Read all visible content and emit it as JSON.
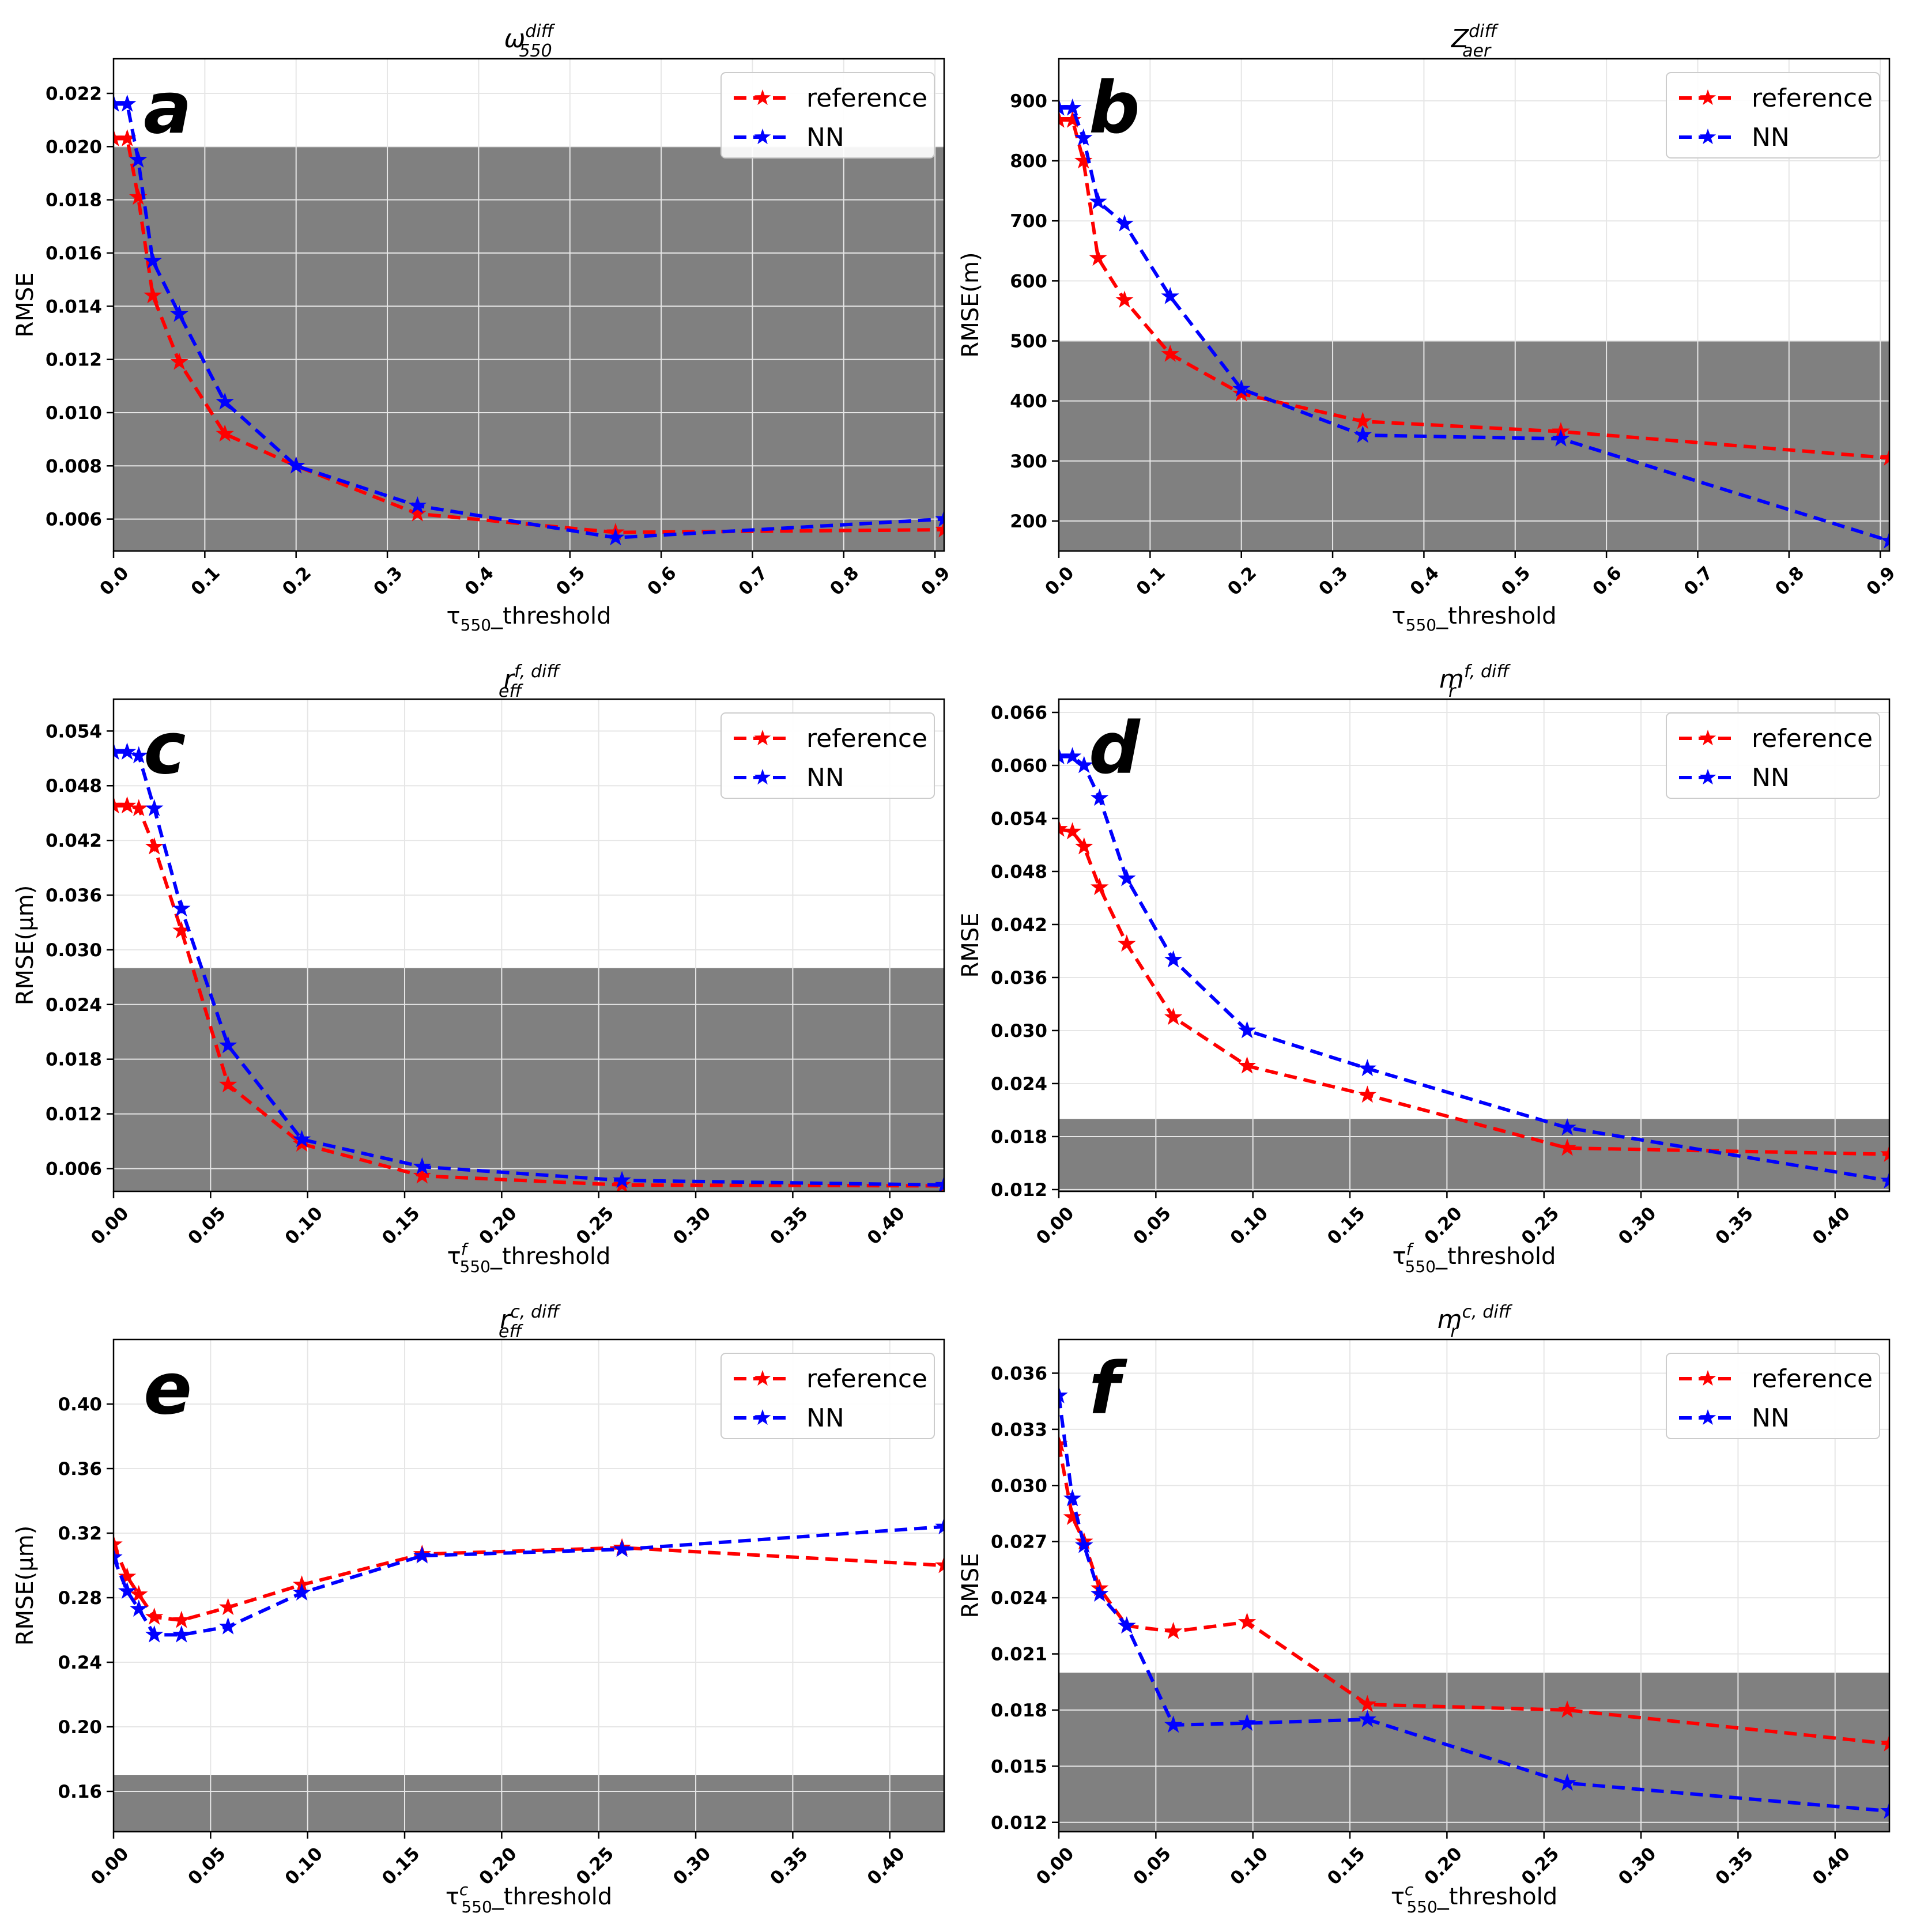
{
  "figure": {
    "legend_labels": [
      "reference",
      "NN"
    ],
    "colors": {
      "reference": "#ff0000",
      "NN": "#0000ff",
      "band": "#808080",
      "grid": "#e6e6e6"
    }
  },
  "chart_data": [
    {
      "id": "a",
      "type": "line",
      "letter": "a",
      "title_base": "ω",
      "title_sup": "diff",
      "title_sub": "550",
      "xlabel_base": "τ",
      "xlabel_sup": "",
      "xlabel_sub": "550",
      "xlabel_suffix": "_threshold",
      "ylabel": "RMSE",
      "xlim": [
        0,
        0.91
      ],
      "ylim": [
        0.0048,
        0.0233
      ],
      "xticks": [
        0.0,
        0.1,
        0.2,
        0.3,
        0.4,
        0.5,
        0.6,
        0.7,
        0.8,
        0.9
      ],
      "xtick_labels": [
        "0.0",
        "0.1",
        "0.2",
        "0.3",
        "0.4",
        "0.5",
        "0.6",
        "0.7",
        "0.8",
        "0.9"
      ],
      "yticks": [
        0.006,
        0.008,
        0.01,
        0.012,
        0.014,
        0.016,
        0.018,
        0.02,
        0.022
      ],
      "ytick_labels": [
        "0.006",
        "0.008",
        "0.010",
        "0.012",
        "0.014",
        "0.016",
        "0.018",
        "0.020",
        "0.022"
      ],
      "band": [
        0.0048,
        0.02
      ],
      "series": [
        {
          "name": "reference",
          "x": [
            0.0,
            0.015,
            0.027,
            0.043,
            0.072,
            0.122,
            0.2,
            0.333,
            0.55,
            0.91
          ],
          "y": [
            0.0203,
            0.0203,
            0.0181,
            0.0144,
            0.0119,
            0.0092,
            0.008,
            0.0062,
            0.0055,
            0.0056
          ]
        },
        {
          "name": "NN",
          "x": [
            0.0,
            0.015,
            0.027,
            0.043,
            0.072,
            0.122,
            0.2,
            0.333,
            0.55,
            0.91
          ],
          "y": [
            0.0216,
            0.0216,
            0.0195,
            0.0157,
            0.0137,
            0.0104,
            0.008,
            0.0065,
            0.0053,
            0.006
          ]
        }
      ]
    },
    {
      "id": "b",
      "type": "line",
      "letter": "b",
      "title_base": "Z",
      "title_sup": "diff",
      "title_sub": "aer",
      "xlabel_base": "τ",
      "xlabel_sup": "",
      "xlabel_sub": "550",
      "xlabel_suffix": "_threshold",
      "ylabel": "RMSE(m)",
      "xlim": [
        0,
        0.91
      ],
      "ylim": [
        150,
        970
      ],
      "xticks": [
        0.0,
        0.1,
        0.2,
        0.3,
        0.4,
        0.5,
        0.6,
        0.7,
        0.8,
        0.9
      ],
      "xtick_labels": [
        "0.0",
        "0.1",
        "0.2",
        "0.3",
        "0.4",
        "0.5",
        "0.6",
        "0.7",
        "0.8",
        "0.9"
      ],
      "yticks": [
        200,
        300,
        400,
        500,
        600,
        700,
        800,
        900
      ],
      "ytick_labels": [
        "200",
        "300",
        "400",
        "500",
        "600",
        "700",
        "800",
        "900"
      ],
      "band": [
        150,
        500
      ],
      "series": [
        {
          "name": "reference",
          "x": [
            0.0,
            0.015,
            0.027,
            0.043,
            0.072,
            0.122,
            0.2,
            0.333,
            0.55,
            0.91
          ],
          "y": [
            868,
            868,
            800,
            638,
            568,
            478,
            412,
            366,
            349,
            305
          ]
        },
        {
          "name": "NN",
          "x": [
            0.0,
            0.015,
            0.027,
            0.043,
            0.072,
            0.122,
            0.2,
            0.333,
            0.55,
            0.91
          ],
          "y": [
            888,
            888,
            838,
            732,
            695,
            574,
            420,
            343,
            337,
            167
          ]
        }
      ]
    },
    {
      "id": "c",
      "type": "line",
      "letter": "c",
      "title_base": "r",
      "title_sup": "f, diff",
      "title_sub": "eff",
      "xlabel_base": "τ",
      "xlabel_sup": "f",
      "xlabel_sub": "550",
      "xlabel_suffix": "_threshold",
      "ylabel": "RMSE(μm)",
      "xlim": [
        0,
        0.428
      ],
      "ylim": [
        0.0035,
        0.0575
      ],
      "xticks": [
        0.0,
        0.05,
        0.1,
        0.15,
        0.2,
        0.25,
        0.3,
        0.35,
        0.4
      ],
      "xtick_labels": [
        "0.00",
        "0.05",
        "0.10",
        "0.15",
        "0.20",
        "0.25",
        "0.30",
        "0.35",
        "0.40"
      ],
      "yticks": [
        0.006,
        0.012,
        0.018,
        0.024,
        0.03,
        0.036,
        0.042,
        0.048,
        0.054
      ],
      "ytick_labels": [
        "0.006",
        "0.012",
        "0.018",
        "0.024",
        "0.030",
        "0.036",
        "0.042",
        "0.048",
        "0.054"
      ],
      "band": [
        0.0035,
        0.028
      ],
      "series": [
        {
          "name": "reference",
          "x": [
            0.0,
            0.007,
            0.013,
            0.021,
            0.035,
            0.059,
            0.097,
            0.159,
            0.262,
            0.428
          ],
          "y": [
            0.0458,
            0.0458,
            0.0455,
            0.0413,
            0.0321,
            0.0152,
            0.0087,
            0.0052,
            0.0042,
            0.0041
          ]
        },
        {
          "name": "NN",
          "x": [
            0.0,
            0.007,
            0.013,
            0.021,
            0.035,
            0.059,
            0.097,
            0.159,
            0.262,
            0.428
          ],
          "y": [
            0.0517,
            0.0517,
            0.0513,
            0.0455,
            0.0345,
            0.0195,
            0.0092,
            0.0062,
            0.0047,
            0.0042
          ]
        }
      ]
    },
    {
      "id": "d",
      "type": "line",
      "letter": "d",
      "title_base": "m",
      "title_sup": "f, diff",
      "title_sub": "r",
      "xlabel_base": "τ",
      "xlabel_sup": "f",
      "xlabel_sub": "550",
      "xlabel_suffix": "_threshold",
      "ylabel": "RMSE",
      "xlim": [
        0,
        0.428
      ],
      "ylim": [
        0.0118,
        0.0675
      ],
      "xticks": [
        0.0,
        0.05,
        0.1,
        0.15,
        0.2,
        0.25,
        0.3,
        0.35,
        0.4
      ],
      "xtick_labels": [
        "0.00",
        "0.05",
        "0.10",
        "0.15",
        "0.20",
        "0.25",
        "0.30",
        "0.35",
        "0.40"
      ],
      "yticks": [
        0.012,
        0.018,
        0.024,
        0.03,
        0.036,
        0.042,
        0.048,
        0.054,
        0.06,
        0.066
      ],
      "ytick_labels": [
        "0.012",
        "0.018",
        "0.024",
        "0.030",
        "0.036",
        "0.042",
        "0.048",
        "0.054",
        "0.060",
        "0.066"
      ],
      "band": [
        0.0118,
        0.02
      ],
      "series": [
        {
          "name": "reference",
          "x": [
            0.0,
            0.007,
            0.013,
            0.021,
            0.035,
            0.059,
            0.097,
            0.159,
            0.262,
            0.428
          ],
          "y": [
            0.0528,
            0.0525,
            0.0508,
            0.0462,
            0.0398,
            0.0315,
            0.026,
            0.0227,
            0.0167,
            0.016
          ]
        },
        {
          "name": "NN",
          "x": [
            0.0,
            0.007,
            0.013,
            0.021,
            0.035,
            0.059,
            0.097,
            0.159,
            0.262,
            0.428
          ],
          "y": [
            0.061,
            0.061,
            0.06,
            0.0563,
            0.0472,
            0.038,
            0.03,
            0.0257,
            0.019,
            0.013
          ]
        }
      ]
    },
    {
      "id": "e",
      "type": "line",
      "letter": "e",
      "title_base": "r",
      "title_sup": "c, diff",
      "title_sub": "eff",
      "xlabel_base": "τ",
      "xlabel_sup": "c",
      "xlabel_sub": "550",
      "xlabel_suffix": "_threshold",
      "ylabel": "RMSE(μm)",
      "xlim": [
        0,
        0.428
      ],
      "ylim": [
        0.135,
        0.44
      ],
      "xticks": [
        0.0,
        0.05,
        0.1,
        0.15,
        0.2,
        0.25,
        0.3,
        0.35,
        0.4
      ],
      "xtick_labels": [
        "0.00",
        "0.05",
        "0.10",
        "0.15",
        "0.20",
        "0.25",
        "0.30",
        "0.35",
        "0.40"
      ],
      "yticks": [
        0.16,
        0.2,
        0.24,
        0.28,
        0.32,
        0.36,
        0.4
      ],
      "ytick_labels": [
        "0.16",
        "0.20",
        "0.24",
        "0.28",
        "0.32",
        "0.36",
        "0.40"
      ],
      "band": [
        0.135,
        0.17
      ],
      "series": [
        {
          "name": "reference",
          "x": [
            0.0,
            0.007,
            0.013,
            0.021,
            0.035,
            0.059,
            0.097,
            0.159,
            0.262,
            0.428
          ],
          "y": [
            0.313,
            0.293,
            0.282,
            0.268,
            0.266,
            0.274,
            0.288,
            0.307,
            0.311,
            0.3
          ]
        },
        {
          "name": "NN",
          "x": [
            0.0,
            0.007,
            0.013,
            0.021,
            0.035,
            0.059,
            0.097,
            0.159,
            0.262,
            0.428
          ],
          "y": [
            0.305,
            0.284,
            0.273,
            0.257,
            0.257,
            0.262,
            0.283,
            0.306,
            0.31,
            0.324
          ]
        }
      ]
    },
    {
      "id": "f",
      "type": "line",
      "letter": "f",
      "title_base": "m",
      "title_sup": "c, diff",
      "title_sub": "r",
      "xlabel_base": "τ",
      "xlabel_sup": "c",
      "xlabel_sub": "550",
      "xlabel_suffix": "_threshold",
      "ylabel": "RMSE",
      "xlim": [
        0,
        0.428
      ],
      "ylim": [
        0.0115,
        0.0378
      ],
      "xticks": [
        0.0,
        0.05,
        0.1,
        0.15,
        0.2,
        0.25,
        0.3,
        0.35,
        0.4
      ],
      "xtick_labels": [
        "0.00",
        "0.05",
        "0.10",
        "0.15",
        "0.20",
        "0.25",
        "0.30",
        "0.35",
        "0.40"
      ],
      "yticks": [
        0.012,
        0.015,
        0.018,
        0.021,
        0.024,
        0.027,
        0.03,
        0.033,
        0.036
      ],
      "ytick_labels": [
        "0.012",
        "0.015",
        "0.018",
        "0.021",
        "0.024",
        "0.027",
        "0.030",
        "0.033",
        "0.036"
      ],
      "band": [
        0.0115,
        0.02
      ],
      "series": [
        {
          "name": "reference",
          "x": [
            0.0,
            0.007,
            0.013,
            0.021,
            0.035,
            0.059,
            0.097,
            0.159,
            0.262,
            0.428
          ],
          "y": [
            0.0322,
            0.0283,
            0.027,
            0.0245,
            0.0225,
            0.0222,
            0.0227,
            0.0183,
            0.018,
            0.0162
          ]
        },
        {
          "name": "NN",
          "x": [
            0.0,
            0.007,
            0.013,
            0.021,
            0.035,
            0.059,
            0.097,
            0.159,
            0.262,
            0.428
          ],
          "y": [
            0.0348,
            0.0293,
            0.0268,
            0.0242,
            0.0225,
            0.0172,
            0.0173,
            0.0175,
            0.0141,
            0.0126
          ]
        }
      ]
    }
  ]
}
